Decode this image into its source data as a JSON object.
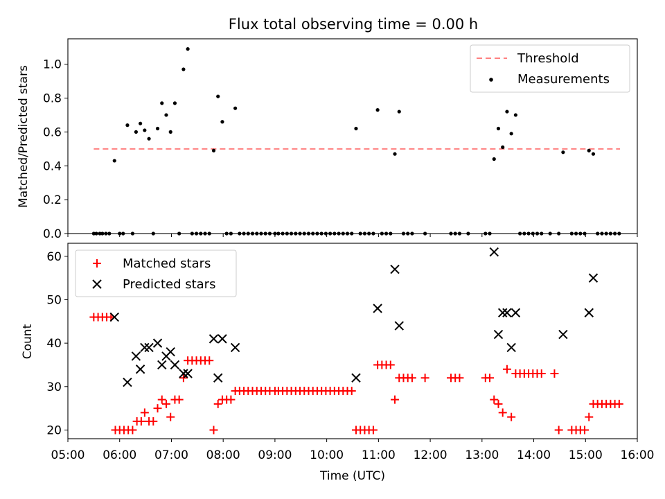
{
  "chart_data": [
    {
      "type": "scatter",
      "title": "Flux total observing time = 0.00 h",
      "xlabel": "",
      "ylabel": "Matched/Predicted stars",
      "xlim": [
        "05:00",
        "16:00"
      ],
      "ylim": [
        0.0,
        1.15
      ],
      "x_ticks": [
        "05:00",
        "06:00",
        "07:00",
        "08:00",
        "09:00",
        "10:00",
        "11:00",
        "12:00",
        "13:00",
        "14:00",
        "15:00",
        "16:00"
      ],
      "y_ticks": [
        "0.0",
        "0.2",
        "0.4",
        "0.6",
        "0.8",
        "1.0"
      ],
      "legend_position": "top-right",
      "threshold": {
        "name": "Threshold",
        "value": 0.5,
        "x_range": [
          "05:30",
          "15:40"
        ],
        "color": "#ff8080"
      },
      "series": [
        {
          "name": "Measurements",
          "color": "#000000",
          "points": [
            [
              "05:30",
              0
            ],
            [
              "05:33",
              0
            ],
            [
              "05:37",
              0
            ],
            [
              "05:40",
              0
            ],
            [
              "05:44",
              0
            ],
            [
              "05:48",
              0
            ],
            [
              "05:54",
              0.43
            ],
            [
              "06:00",
              0
            ],
            [
              "06:04",
              0
            ],
            [
              "06:09",
              0.64
            ],
            [
              "06:15",
              0
            ],
            [
              "06:19",
              0.6
            ],
            [
              "06:24",
              0.65
            ],
            [
              "06:29",
              0.61
            ],
            [
              "06:34",
              0.56
            ],
            [
              "06:39",
              0
            ],
            [
              "06:44",
              0.62
            ],
            [
              "06:49",
              0.77
            ],
            [
              "06:54",
              0.7
            ],
            [
              "06:59",
              0.6
            ],
            [
              "07:04",
              0.77
            ],
            [
              "07:09",
              0
            ],
            [
              "07:14",
              0.97
            ],
            [
              "07:19",
              1.09
            ],
            [
              "07:24",
              0
            ],
            [
              "07:29",
              0
            ],
            [
              "07:34",
              0
            ],
            [
              "07:39",
              0
            ],
            [
              "07:44",
              0
            ],
            [
              "07:49",
              0.49
            ],
            [
              "07:54",
              0.81
            ],
            [
              "07:59",
              0.66
            ],
            [
              "08:04",
              0
            ],
            [
              "08:09",
              0
            ],
            [
              "08:14",
              0.74
            ],
            [
              "08:19",
              0
            ],
            [
              "08:24",
              0
            ],
            [
              "08:29",
              0
            ],
            [
              "08:34",
              0
            ],
            [
              "08:39",
              0
            ],
            [
              "08:44",
              0
            ],
            [
              "08:49",
              0
            ],
            [
              "08:54",
              0
            ],
            [
              "09:00",
              0
            ],
            [
              "09:04",
              0
            ],
            [
              "09:09",
              0
            ],
            [
              "09:14",
              0
            ],
            [
              "09:19",
              0
            ],
            [
              "09:24",
              0
            ],
            [
              "09:29",
              0
            ],
            [
              "09:34",
              0
            ],
            [
              "09:39",
              0
            ],
            [
              "09:44",
              0
            ],
            [
              "09:49",
              0
            ],
            [
              "09:54",
              0
            ],
            [
              "09:59",
              0
            ],
            [
              "10:04",
              0
            ],
            [
              "10:09",
              0
            ],
            [
              "10:14",
              0
            ],
            [
              "10:19",
              0
            ],
            [
              "10:24",
              0
            ],
            [
              "10:29",
              0
            ],
            [
              "10:34",
              0.62
            ],
            [
              "10:39",
              0
            ],
            [
              "10:44",
              0
            ],
            [
              "10:49",
              0
            ],
            [
              "10:54",
              0
            ],
            [
              "10:59",
              0.73
            ],
            [
              "11:04",
              0
            ],
            [
              "11:09",
              0
            ],
            [
              "11:14",
              0
            ],
            [
              "11:19",
              0.47
            ],
            [
              "11:24",
              0.72
            ],
            [
              "11:29",
              0
            ],
            [
              "11:34",
              0
            ],
            [
              "11:39",
              0
            ],
            [
              "11:54",
              0
            ],
            [
              "12:24",
              0
            ],
            [
              "12:29",
              0
            ],
            [
              "12:34",
              0
            ],
            [
              "12:44",
              0
            ],
            [
              "13:04",
              0
            ],
            [
              "13:09",
              0
            ],
            [
              "13:14",
              0.44
            ],
            [
              "13:19",
              0.62
            ],
            [
              "13:24",
              0.51
            ],
            [
              "13:29",
              0.72
            ],
            [
              "13:34",
              0.59
            ],
            [
              "13:39",
              0.7
            ],
            [
              "13:44",
              0
            ],
            [
              "13:49",
              0
            ],
            [
              "13:54",
              0
            ],
            [
              "13:59",
              0
            ],
            [
              "14:04",
              0
            ],
            [
              "14:09",
              0
            ],
            [
              "14:19",
              0
            ],
            [
              "14:29",
              0
            ],
            [
              "14:34",
              0.48
            ],
            [
              "14:44",
              0
            ],
            [
              "14:49",
              0
            ],
            [
              "14:54",
              0
            ],
            [
              "14:59",
              0
            ],
            [
              "15:04",
              0.49
            ],
            [
              "15:09",
              0.47
            ],
            [
              "15:14",
              0
            ],
            [
              "15:19",
              0
            ],
            [
              "15:24",
              0
            ],
            [
              "15:29",
              0
            ],
            [
              "15:34",
              0
            ],
            [
              "15:39",
              0
            ]
          ]
        }
      ]
    },
    {
      "type": "scatter",
      "title": "",
      "xlabel": "Time (UTC)",
      "ylabel": "Count",
      "xlim": [
        "05:00",
        "16:00"
      ],
      "ylim": [
        18,
        63
      ],
      "x_ticks": [
        "05:00",
        "06:00",
        "07:00",
        "08:00",
        "09:00",
        "10:00",
        "11:00",
        "12:00",
        "13:00",
        "14:00",
        "15:00",
        "16:00"
      ],
      "y_ticks": [
        "20",
        "30",
        "40",
        "50",
        "60"
      ],
      "legend_position": "top-left",
      "series": [
        {
          "name": "Matched stars",
          "color": "#ff0000",
          "marker": "+",
          "points": [
            [
              "05:30",
              46
            ],
            [
              "05:35",
              46
            ],
            [
              "05:40",
              46
            ],
            [
              "05:45",
              46
            ],
            [
              "05:50",
              46
            ],
            [
              "05:55",
              20
            ],
            [
              "06:00",
              20
            ],
            [
              "06:05",
              20
            ],
            [
              "06:10",
              20
            ],
            [
              "06:15",
              20
            ],
            [
              "06:20",
              22
            ],
            [
              "06:25",
              22
            ],
            [
              "06:29",
              24
            ],
            [
              "06:34",
              22
            ],
            [
              "06:39",
              22
            ],
            [
              "06:44",
              25
            ],
            [
              "06:49",
              27
            ],
            [
              "06:54",
              26
            ],
            [
              "06:59",
              23
            ],
            [
              "07:04",
              27
            ],
            [
              "07:09",
              27
            ],
            [
              "07:14",
              32
            ],
            [
              "07:19",
              36
            ],
            [
              "07:24",
              36
            ],
            [
              "07:29",
              36
            ],
            [
              "07:34",
              36
            ],
            [
              "07:39",
              36
            ],
            [
              "07:44",
              36
            ],
            [
              "07:49",
              20
            ],
            [
              "07:54",
              26
            ],
            [
              "07:59",
              27
            ],
            [
              "08:04",
              27
            ],
            [
              "08:09",
              27
            ],
            [
              "08:14",
              29
            ],
            [
              "08:19",
              29
            ],
            [
              "08:24",
              29
            ],
            [
              "08:29",
              29
            ],
            [
              "08:34",
              29
            ],
            [
              "08:39",
              29
            ],
            [
              "08:44",
              29
            ],
            [
              "08:49",
              29
            ],
            [
              "08:54",
              29
            ],
            [
              "09:00",
              29
            ],
            [
              "09:04",
              29
            ],
            [
              "09:09",
              29
            ],
            [
              "09:14",
              29
            ],
            [
              "09:19",
              29
            ],
            [
              "09:24",
              29
            ],
            [
              "09:29",
              29
            ],
            [
              "09:34",
              29
            ],
            [
              "09:39",
              29
            ],
            [
              "09:44",
              29
            ],
            [
              "09:49",
              29
            ],
            [
              "09:54",
              29
            ],
            [
              "09:59",
              29
            ],
            [
              "10:04",
              29
            ],
            [
              "10:09",
              29
            ],
            [
              "10:14",
              29
            ],
            [
              "10:19",
              29
            ],
            [
              "10:24",
              29
            ],
            [
              "10:29",
              29
            ],
            [
              "10:34",
              20
            ],
            [
              "10:39",
              20
            ],
            [
              "10:44",
              20
            ],
            [
              "10:49",
              20
            ],
            [
              "10:54",
              20
            ],
            [
              "10:59",
              35
            ],
            [
              "11:04",
              35
            ],
            [
              "11:09",
              35
            ],
            [
              "11:14",
              35
            ],
            [
              "11:19",
              27
            ],
            [
              "11:24",
              32
            ],
            [
              "11:29",
              32
            ],
            [
              "11:34",
              32
            ],
            [
              "11:39",
              32
            ],
            [
              "11:54",
              32
            ],
            [
              "12:24",
              32
            ],
            [
              "12:29",
              32
            ],
            [
              "12:34",
              32
            ],
            [
              "13:04",
              32
            ],
            [
              "13:09",
              32
            ],
            [
              "13:14",
              27
            ],
            [
              "13:19",
              26
            ],
            [
              "13:24",
              24
            ],
            [
              "13:29",
              34
            ],
            [
              "13:34",
              23
            ],
            [
              "13:39",
              33
            ],
            [
              "13:44",
              33
            ],
            [
              "13:49",
              33
            ],
            [
              "13:54",
              33
            ],
            [
              "13:59",
              33
            ],
            [
              "14:04",
              33
            ],
            [
              "14:09",
              33
            ],
            [
              "14:24",
              33
            ],
            [
              "14:29",
              20
            ],
            [
              "14:44",
              20
            ],
            [
              "14:49",
              20
            ],
            [
              "14:54",
              20
            ],
            [
              "14:59",
              20
            ],
            [
              "15:04",
              23
            ],
            [
              "15:09",
              26
            ],
            [
              "15:14",
              26
            ],
            [
              "15:19",
              26
            ],
            [
              "15:24",
              26
            ],
            [
              "15:29",
              26
            ],
            [
              "15:34",
              26
            ],
            [
              "15:39",
              26
            ]
          ]
        },
        {
          "name": "Predicted stars",
          "color": "#000000",
          "marker": "x",
          "points": [
            [
              "05:54",
              46
            ],
            [
              "06:09",
              31
            ],
            [
              "06:19",
              37
            ],
            [
              "06:24",
              34
            ],
            [
              "06:29",
              39
            ],
            [
              "06:34",
              39
            ],
            [
              "06:44",
              40
            ],
            [
              "06:49",
              35
            ],
            [
              "06:54",
              37
            ],
            [
              "06:59",
              38
            ],
            [
              "07:04",
              35
            ],
            [
              "07:14",
              33
            ],
            [
              "07:19",
              33
            ],
            [
              "07:49",
              41
            ],
            [
              "07:54",
              32
            ],
            [
              "07:59",
              41
            ],
            [
              "08:14",
              39
            ],
            [
              "10:34",
              32
            ],
            [
              "10:59",
              48
            ],
            [
              "11:19",
              57
            ],
            [
              "11:24",
              44
            ],
            [
              "13:14",
              61
            ],
            [
              "13:19",
              42
            ],
            [
              "13:24",
              47
            ],
            [
              "13:29",
              47
            ],
            [
              "13:34",
              39
            ],
            [
              "13:39",
              47
            ],
            [
              "14:34",
              42
            ],
            [
              "15:04",
              47
            ],
            [
              "15:09",
              55
            ]
          ]
        }
      ]
    }
  ]
}
